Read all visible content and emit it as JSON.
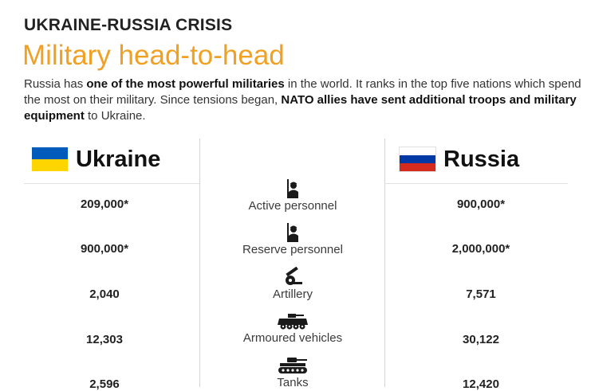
{
  "header": {
    "kicker": "UKRAINE-RUSSIA CRISIS",
    "title": "Military head-to-head"
  },
  "intro": {
    "part1": "Russia has ",
    "bold1": "one of the most powerful militaries",
    "part2": " in the world. It ranks in the top five nations which spend the most on their military. Since tensions began, ",
    "bold2": "NATO allies have sent additional troops and military equipment",
    "part3": " to Ukraine."
  },
  "countries": {
    "left": {
      "name": "Ukraine",
      "flag_colors": [
        "#005bbb",
        "#ffd500"
      ]
    },
    "right": {
      "name": "Russia",
      "flag_colors": [
        "#ffffff",
        "#0039a6",
        "#d52b1e"
      ]
    }
  },
  "metrics": [
    {
      "label": "Active personnel",
      "icon": "soldier-icon",
      "ukraine": "209,000*",
      "russia": "900,000*"
    },
    {
      "label": "Reserve personnel",
      "icon": "soldier-icon",
      "ukraine": "900,000*",
      "russia": "2,000,000*"
    },
    {
      "label": "Artillery",
      "icon": "artillery-icon",
      "ukraine": "2,040",
      "russia": "7,571"
    },
    {
      "label": "Armoured vehicles",
      "icon": "armoured-vehicle-icon",
      "ukraine": "12,303",
      "russia": "30,122"
    },
    {
      "label": "Tanks",
      "icon": "tank-icon",
      "ukraine": "2,596",
      "russia": "12,420"
    }
  ],
  "colors": {
    "title_accent": "#f0a023",
    "text": "#1a1a1a",
    "icon": "#1a1a1a"
  }
}
